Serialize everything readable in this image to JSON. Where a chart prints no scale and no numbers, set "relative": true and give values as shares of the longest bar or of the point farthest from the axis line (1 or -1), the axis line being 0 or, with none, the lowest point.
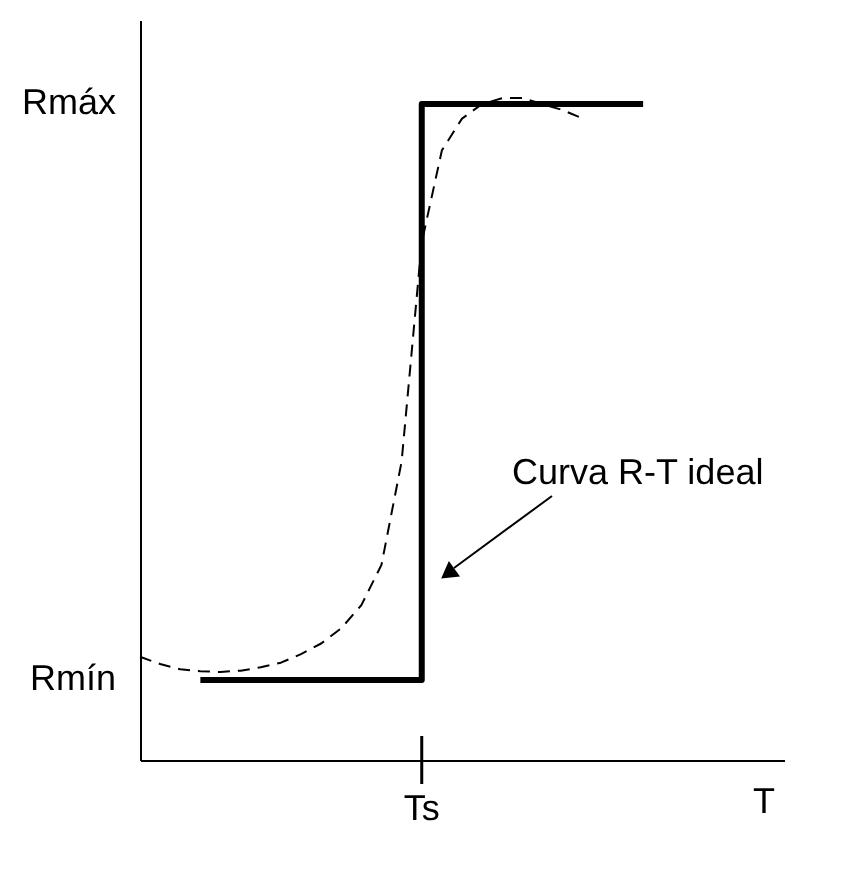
{
  "chart_data": {
    "type": "line",
    "xlabel": "T",
    "relative": true,
    "grid": false,
    "categories": [
      null,
      null,
      null,
      null,
      null,
      null,
      null,
      null,
      null,
      null,
      null,
      null,
      null,
      null,
      null,
      null,
      null,
      null,
      null,
      null,
      null,
      null,
      null,
      null,
      null,
      null,
      null,
      null,
      null,
      null,
      null,
      null,
      null
    ],
    "series": [
      {
        "type": "step",
        "color": "#000000",
        "line_style": "solid",
        "values": [
          null,
          null,
          null,
          0.121,
          0.121,
          0.121,
          0.121,
          0.121,
          0.121,
          0.121,
          0.121,
          0.121,
          0.121,
          0.121,
          0.991,
          0.991,
          0.991,
          0.991,
          0.991,
          0.991,
          0.991,
          0.991,
          0.991,
          0.991,
          0.991,
          0.991,
          null,
          null,
          null,
          null,
          null,
          null,
          null
        ]
      },
      {
        "color": "#000000",
        "line_style": "dashed",
        "values": [
          0.156,
          0.145,
          0.137,
          0.134,
          0.133,
          0.135,
          0.14,
          0.147,
          0.16,
          0.176,
          0.199,
          0.234,
          0.295,
          0.451,
          0.782,
          0.921,
          0.969,
          0.991,
          1.0,
          1.0,
          0.991,
          0.982,
          0.969,
          null,
          null,
          null,
          null,
          null,
          null,
          null,
          null,
          null,
          null
        ]
      }
    ],
    "annotations": [
      "Curva R-T ideal",
      "Ts",
      "Rmín",
      "Rmáx"
    ]
  }
}
